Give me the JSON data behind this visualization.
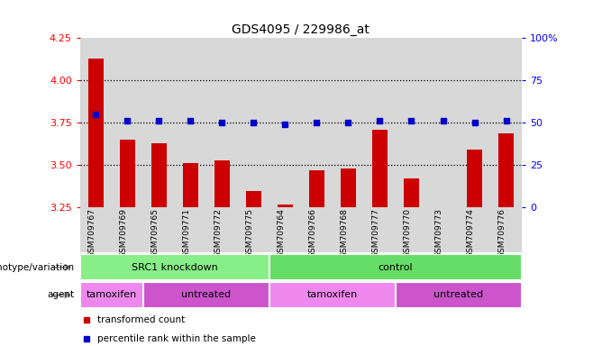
{
  "title": "GDS4095 / 229986_at",
  "samples": [
    "GSM709767",
    "GSM709769",
    "GSM709765",
    "GSM709771",
    "GSM709772",
    "GSM709775",
    "GSM709764",
    "GSM709766",
    "GSM709768",
    "GSM709777",
    "GSM709770",
    "GSM709773",
    "GSM709774",
    "GSM709776"
  ],
  "red_values": [
    4.13,
    3.65,
    3.63,
    3.51,
    3.53,
    3.35,
    3.27,
    3.47,
    3.48,
    3.71,
    3.42,
    3.23,
    3.59,
    3.69
  ],
  "blue_values": [
    55,
    51,
    51,
    51,
    50,
    50,
    49,
    50,
    50,
    51,
    51,
    51,
    50,
    51
  ],
  "ylim_left": [
    3.25,
    4.25
  ],
  "ylim_right": [
    0,
    100
  ],
  "yticks_left": [
    3.25,
    3.5,
    3.75,
    4.0,
    4.25
  ],
  "yticks_right": [
    0,
    25,
    50,
    75,
    100
  ],
  "hlines": [
    3.5,
    3.75,
    4.0
  ],
  "bar_color": "#cc0000",
  "dot_color": "#0000cc",
  "col_bg": "#d8d8d8",
  "genotype_groups": [
    {
      "label": "SRC1 knockdown",
      "start": 0,
      "end": 6,
      "color": "#88ee88"
    },
    {
      "label": "control",
      "start": 6,
      "end": 14,
      "color": "#66dd66"
    }
  ],
  "agent_groups": [
    {
      "label": "tamoxifen",
      "start": 0,
      "end": 2,
      "color": "#ee88ee"
    },
    {
      "label": "untreated",
      "start": 2,
      "end": 6,
      "color": "#cc55cc"
    },
    {
      "label": "tamoxifen",
      "start": 6,
      "end": 10,
      "color": "#ee88ee"
    },
    {
      "label": "untreated",
      "start": 10,
      "end": 14,
      "color": "#cc55cc"
    }
  ],
  "genotype_label": "genotype/variation",
  "agent_label": "agent",
  "legend": [
    {
      "label": "transformed count",
      "color": "#cc0000"
    },
    {
      "label": "percentile rank within the sample",
      "color": "#0000cc"
    }
  ],
  "arrow_color": "#888888"
}
